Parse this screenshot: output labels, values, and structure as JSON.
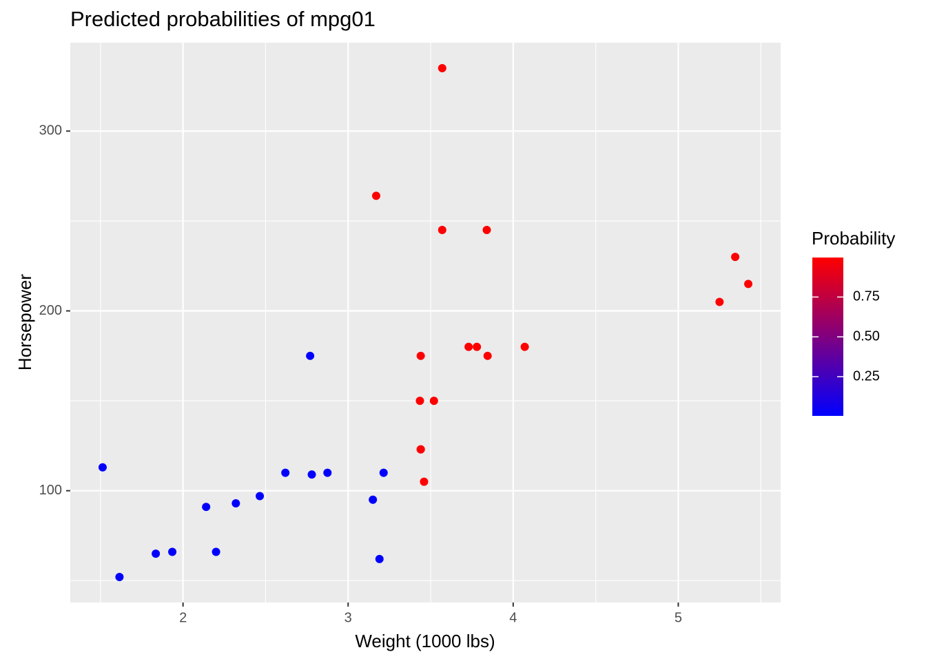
{
  "chart_data": {
    "type": "scatter",
    "title": "Predicted probabilities of mpg01",
    "x_label": "Weight (1000 lbs)",
    "y_label": "Horsepower",
    "x": [
      2.62,
      2.875,
      2.32,
      3.215,
      3.44,
      3.46,
      3.57,
      3.19,
      3.15,
      3.44,
      3.44,
      4.07,
      3.73,
      3.78,
      5.25,
      5.424,
      5.345,
      2.2,
      1.615,
      1.835,
      2.465,
      3.52,
      3.435,
      3.84,
      3.845,
      1.935,
      2.14,
      1.513,
      3.17,
      2.77,
      3.57,
      2.78
    ],
    "values": [
      110,
      110,
      93,
      110,
      175,
      105,
      245,
      62,
      95,
      123,
      123,
      180,
      180,
      180,
      205,
      215,
      230,
      66,
      52,
      65,
      97,
      150,
      150,
      245,
      175,
      66,
      91,
      113,
      264,
      175,
      335,
      109
    ],
    "probability": [
      0.01,
      0.01,
      0.01,
      0.01,
      0.99,
      0.99,
      0.99,
      0.01,
      0.01,
      0.99,
      0.99,
      0.99,
      0.99,
      0.99,
      0.99,
      0.99,
      0.99,
      0.01,
      0.01,
      0.01,
      0.01,
      0.99,
      0.99,
      0.99,
      0.99,
      0.01,
      0.01,
      0.01,
      0.99,
      0.01,
      0.99,
      0.01
    ],
    "xlim": [
      1.317,
      5.62
    ],
    "ylim": [
      37.85,
      349.15
    ],
    "xticks": [
      2,
      3,
      4,
      5
    ],
    "yticks": [
      100,
      200,
      300
    ],
    "grid": true,
    "legend": {
      "title": "Probability",
      "position": "right",
      "low_color": "#0000FF",
      "high_color": "#FF0000",
      "lim": [
        0.004,
        0.998
      ],
      "ticks": [
        0.25,
        {
          "value": 0.5,
          "label": "0.50"
        },
        0.75
      ]
    }
  }
}
